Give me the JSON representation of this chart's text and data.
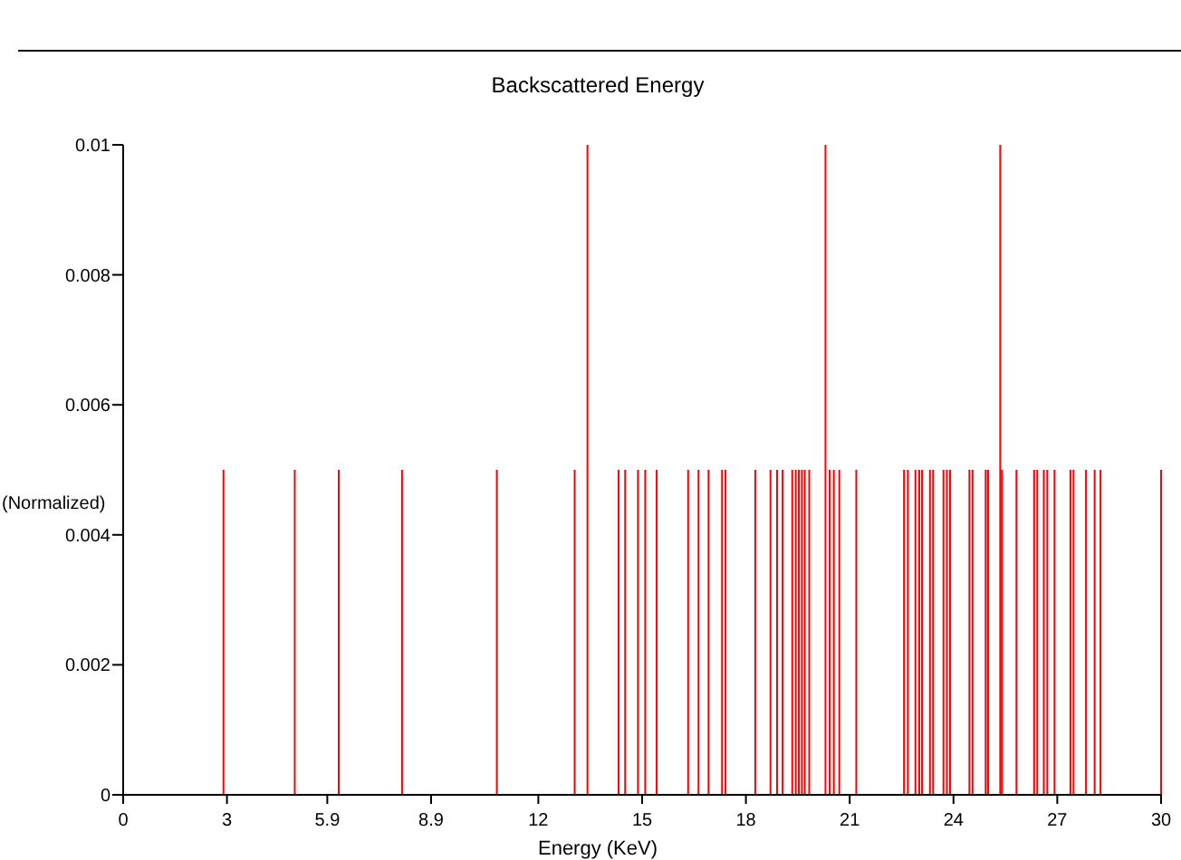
{
  "chart_data": {
    "type": "bar",
    "title": "Backscattered Energy",
    "xlabel": "Energy (KeV)",
    "ylabel": "(Normalized)",
    "color": "#ff0000",
    "x": [
      2.9,
      4.96,
      6.23,
      8.06,
      10.8,
      13.05,
      13.42,
      14.32,
      14.51,
      14.88,
      15.09,
      15.42,
      16.33,
      16.63,
      16.92,
      17.31,
      17.41,
      18.27,
      18.71,
      18.9,
      19.06,
      19.34,
      19.44,
      19.53,
      19.62,
      19.7,
      19.83,
      20.3,
      20.42,
      20.54,
      20.7,
      21.19,
      22.57,
      22.68,
      22.9,
      23.01,
      23.09,
      23.32,
      23.41,
      23.71,
      23.81,
      23.9,
      24.46,
      24.55,
      24.93,
      25,
      25.35,
      25.4,
      25.82,
      26.33,
      26.42,
      26.61,
      26.71,
      26.92,
      27.38,
      27.47,
      27.83,
      28.08,
      28.25,
      30
    ],
    "values": [
      0.005,
      0.005,
      0.005,
      0.005,
      0.005,
      0.005,
      0.01,
      0.005,
      0.005,
      0.005,
      0.005,
      0.005,
      0.005,
      0.005,
      0.005,
      0.005,
      0.005,
      0.005,
      0.005,
      0.005,
      0.005,
      0.005,
      0.005,
      0.005,
      0.005,
      0.005,
      0.005,
      0.01,
      0.005,
      0.005,
      0.005,
      0.005,
      0.005,
      0.005,
      0.005,
      0.005,
      0.005,
      0.005,
      0.005,
      0.005,
      0.005,
      0.005,
      0.005,
      0.005,
      0.005,
      0.005,
      0.01,
      0.005,
      0.005,
      0.005,
      0.005,
      0.005,
      0.005,
      0.005,
      0.005,
      0.005,
      0.005,
      0.005,
      0.005,
      0.005
    ],
    "xlim": [
      0,
      30
    ],
    "xticks": [
      0,
      3,
      5.9,
      8.9,
      12,
      15,
      18,
      21,
      24,
      27,
      30
    ],
    "ylim": [
      0,
      0.01
    ],
    "yticks": [
      0,
      0.002,
      0.004,
      0.006,
      0.008,
      0.01
    ],
    "grid": false
  }
}
